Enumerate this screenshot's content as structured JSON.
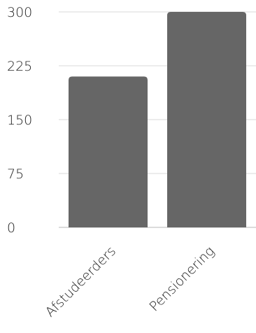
{
  "chart_data": {
    "type": "bar",
    "categories": [
      "Afstudeerders",
      "Pensionering"
    ],
    "values": [
      210,
      300
    ],
    "ylim": [
      0,
      300
    ],
    "yticks": [
      0,
      75,
      150,
      225,
      300
    ],
    "grid": true,
    "bar_color": "#666666",
    "title": "",
    "xlabel": "",
    "ylabel": ""
  }
}
